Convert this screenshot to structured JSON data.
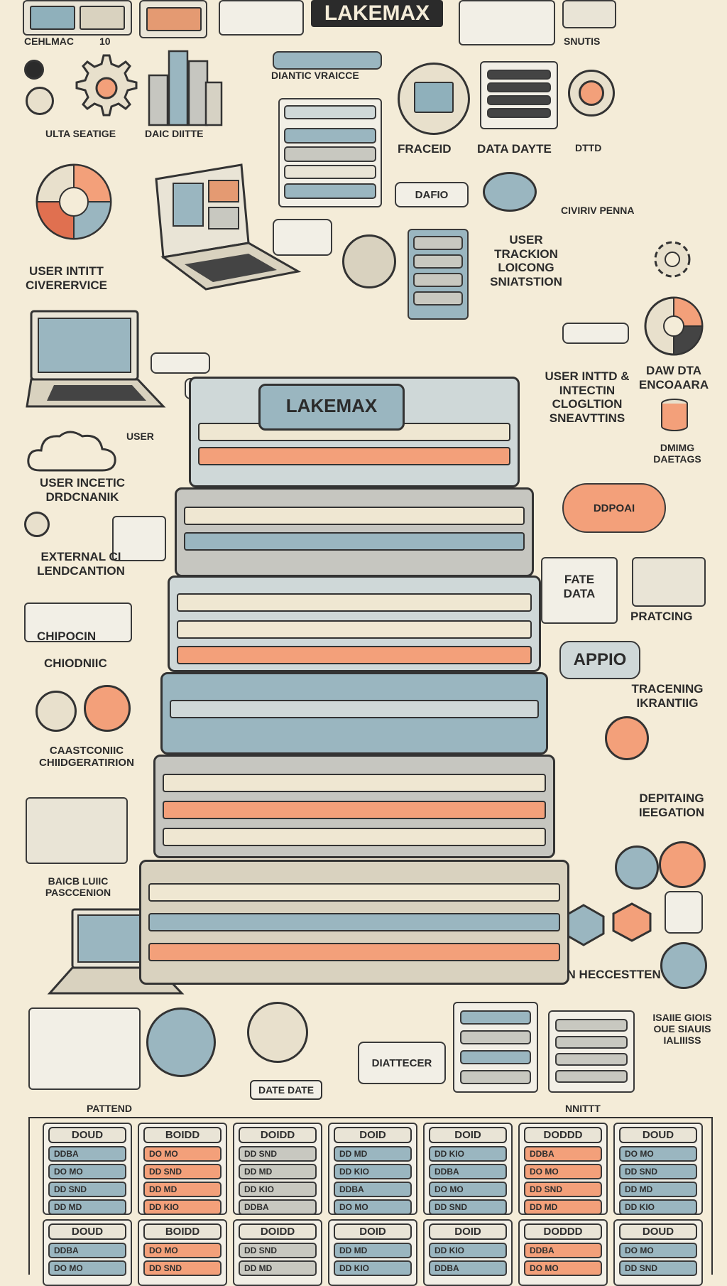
{
  "title": "LAKEMAX",
  "labels": {
    "top_left_caption": "CEHLMAC",
    "top_left_caption_num": "10",
    "top_right_caption": "SNUTIS",
    "banner_left": "DIANTIC VRAICCE",
    "gear_caption": "ULTA SEATIGE",
    "bars_caption": "DAIC DIITTE",
    "framed_caption": "FRACEID",
    "data_dayte": "DATA DAYTE",
    "dttd": "DTTD",
    "dafio": "DAFIO",
    "user_intit_1": "USER INTITT",
    "user_intit_2": "CIVERERVICE",
    "small_right": "CIVIRIV PENNA",
    "user_tracking": "USER TRACKION LOICONG SNIATSTION",
    "user_intd": "USER INTTD & INTECTIN CLOGLTION SNEAVTTINS",
    "daw_data": "DAW DTA ENCOAARA",
    "dmimg": "DMIMG DAETAGS",
    "user_left": "USER",
    "user_incetic": "USER INCETIC DRDCNANIK",
    "ddpoai": "DDPOAI",
    "external": "EXTERNAL CI LENDCANTION",
    "fate_data": "FATE DATA",
    "pratcing": "PRATCING",
    "chipocn": "CHIPOCIN",
    "chiodnic": "CHIODNIIC",
    "appio": "APPIO",
    "tracking": "TRACENING IKRANTIIG",
    "caastconic": "CAASTCONIIC CHIIDGERATIRION",
    "deptng": "DEPITAING IEEGATION",
    "baicb": "BAICB LUIIC PASCCENION",
    "dan_heccestion": "DAN HECCESTTEN",
    "diattecer": "DIATTECER",
    "date_date": "DATE DATE",
    "side_right": "ISAIIE GIOIS OUE SIAUIS IALIIISS",
    "pattend": "PATTEND",
    "nnittt": "NNITTT",
    "tower_label": "LAKEMAX"
  },
  "tables": {
    "columns": [
      "DOUD",
      "BOIDD",
      "DOIDD",
      "DOID",
      "DOID",
      "DODDD",
      "DOUD"
    ],
    "rows": [
      "DDBA",
      "DO MO",
      "DD SND",
      "DD MD",
      "DD KIO"
    ]
  },
  "colors": {
    "background": "#f4ecd8",
    "accent_orange": "#f3a07a",
    "accent_blue": "#9ab6c0",
    "ink": "#2e2e2e"
  }
}
